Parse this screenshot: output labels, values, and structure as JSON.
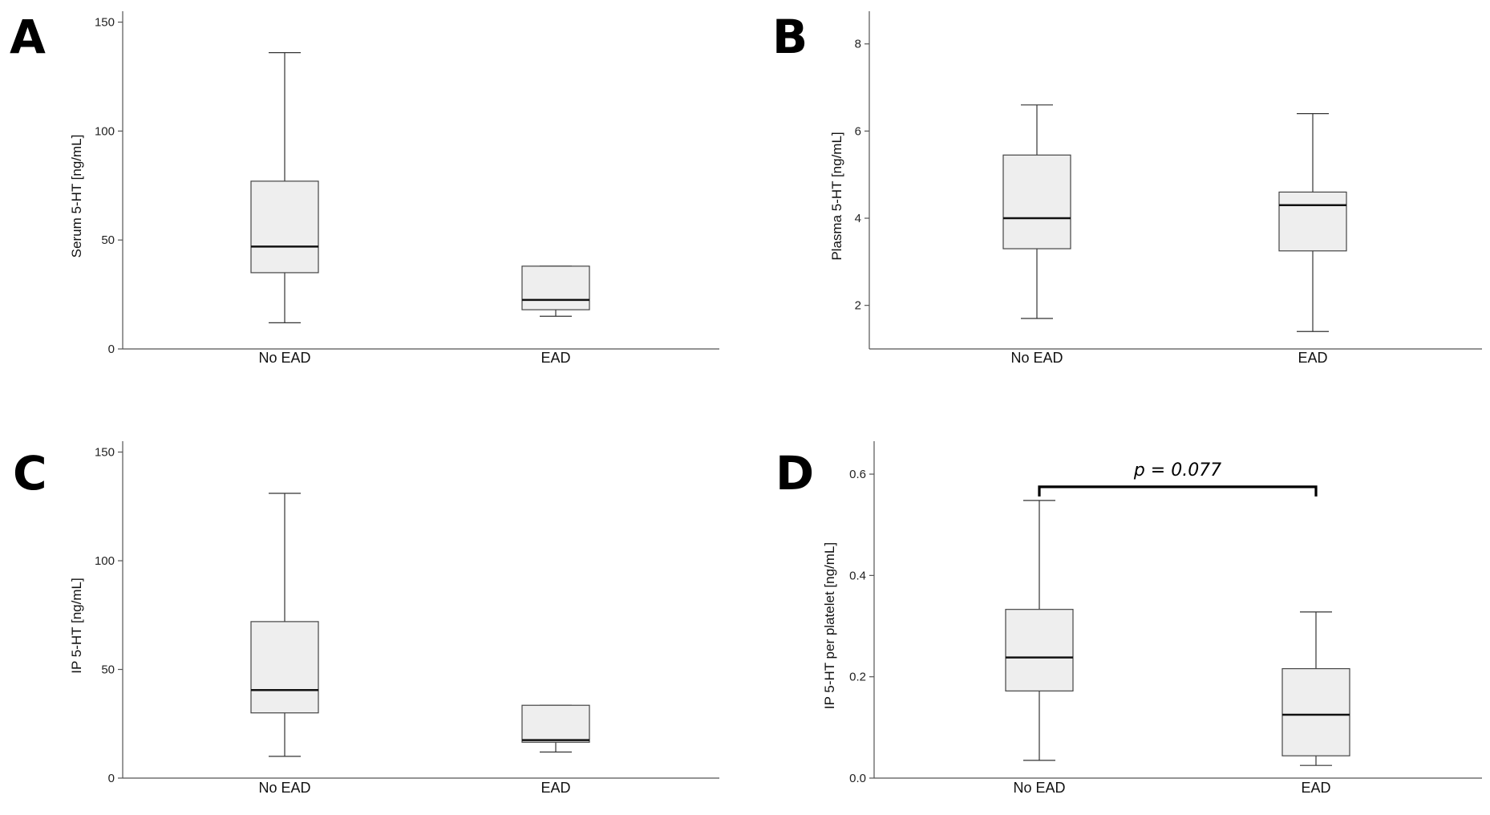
{
  "chart_data": [
    {
      "panel": "A",
      "type": "box",
      "categories": [
        "No EAD",
        "EAD"
      ],
      "boxes": [
        {
          "category": "No EAD",
          "whisker_low": 12,
          "q1": 35,
          "median": 47,
          "q3": 77,
          "whisker_high": 136
        },
        {
          "category": "EAD",
          "whisker_low": 15,
          "q1": 18,
          "median": 22.5,
          "q3": 38,
          "whisker_high": 38
        }
      ],
      "ylabel": "Serum 5-HT [ng/mL]",
      "xlabel": "",
      "ylim": [
        0,
        155
      ],
      "yticks": [
        0,
        50,
        100,
        150
      ],
      "ytick_labels": [
        "0",
        "50",
        "100",
        "150"
      ]
    },
    {
      "panel": "B",
      "type": "box",
      "categories": [
        "No EAD",
        "EAD"
      ],
      "boxes": [
        {
          "category": "No EAD",
          "whisker_low": 1.7,
          "q1": 3.3,
          "median": 4.0,
          "q3": 5.45,
          "whisker_high": 6.6
        },
        {
          "category": "EAD",
          "whisker_low": 1.4,
          "q1": 3.25,
          "median": 4.3,
          "q3": 4.6,
          "whisker_high": 6.4
        }
      ],
      "ylabel": "Plasma 5-HT [ng/mL]",
      "xlabel": "",
      "ylim": [
        1,
        8.75
      ],
      "yticks": [
        2,
        4,
        6,
        8
      ],
      "ytick_labels": [
        "2",
        "4",
        "6",
        "8"
      ]
    },
    {
      "panel": "C",
      "type": "box",
      "categories": [
        "No EAD",
        "EAD"
      ],
      "boxes": [
        {
          "category": "No EAD",
          "whisker_low": 10,
          "q1": 30,
          "median": 40.5,
          "q3": 72,
          "whisker_high": 131
        },
        {
          "category": "EAD",
          "whisker_low": 12,
          "q1": 16.5,
          "median": 17.5,
          "q3": 33.5,
          "whisker_high": 33.5
        }
      ],
      "ylabel": "IP 5-HT [ng/mL]",
      "xlabel": "",
      "ylim": [
        0,
        155
      ],
      "yticks": [
        0,
        50,
        100,
        150
      ],
      "ytick_labels": [
        "0",
        "50",
        "100",
        "150"
      ]
    },
    {
      "panel": "D",
      "type": "box",
      "categories": [
        "No EAD",
        "EAD"
      ],
      "boxes": [
        {
          "category": "No EAD",
          "whisker_low": 0.035,
          "q1": 0.172,
          "median": 0.238,
          "q3": 0.333,
          "whisker_high": 0.548
        },
        {
          "category": "EAD",
          "whisker_low": 0.025,
          "q1": 0.044,
          "median": 0.125,
          "q3": 0.216,
          "whisker_high": 0.328
        }
      ],
      "ylabel": "IP 5-HT per platelet [ng/mL]",
      "xlabel": "",
      "ylim": [
        0,
        0.665
      ],
      "yticks": [
        0.0,
        0.2,
        0.4,
        0.6
      ],
      "ytick_labels": [
        "0.0",
        "0.2",
        "0.4",
        "0.6"
      ],
      "annotation": {
        "text": "p = 0.077",
        "between": [
          "No EAD",
          "EAD"
        ],
        "value": 0.575
      }
    }
  ]
}
